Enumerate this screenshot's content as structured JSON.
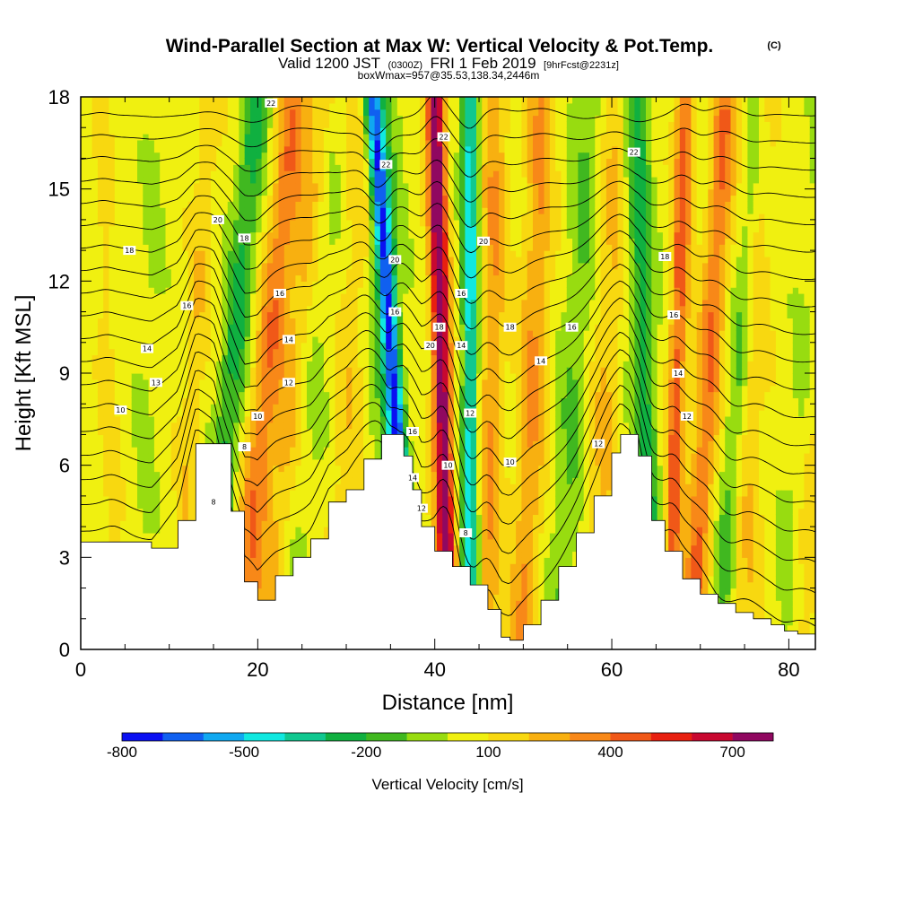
{
  "title": {
    "main": "Wind-Parallel Section at Max W: Vertical Velocity & Pot.Temp.",
    "copyright": "(C)",
    "line2_a": "Valid 1200 JST",
    "line2_b": "(0300Z)",
    "line2_c": "FRI 1 Feb 2019",
    "line2_d": "[9hrFcst@2231z]",
    "line3": "boxWmax=957@35.53,138.34,2446m"
  },
  "chart_data": {
    "type": "heatmap",
    "xlabel": "Distance [nm]",
    "ylabel": "Height [Kft MSL]",
    "xlim": [
      0,
      83
    ],
    "ylim": [
      0,
      18
    ],
    "xticks": [
      0,
      20,
      40,
      60,
      80
    ],
    "yticks": [
      0,
      3,
      6,
      9,
      12,
      15,
      18
    ],
    "x_minor_step": 5,
    "y_minor_step": 1,
    "colorbar": {
      "label": "Vertical Velocity [cm/s]",
      "levels": [
        -800,
        -700,
        -600,
        -500,
        -400,
        -300,
        -200,
        -100,
        0,
        100,
        200,
        300,
        400,
        500,
        600,
        700,
        800
      ],
      "colors": [
        "#0a10f2",
        "#1060f0",
        "#10a8f0",
        "#10e8e0",
        "#10c890",
        "#10b040",
        "#40b820",
        "#98dc10",
        "#f0f010",
        "#f8d810",
        "#f8b010",
        "#f88818",
        "#f05818",
        "#e82010",
        "#c80830",
        "#900860"
      ],
      "ticklabels": [
        {
          "value": -800,
          "text": "-800"
        },
        {
          "value": -500,
          "text": "-500"
        },
        {
          "value": -200,
          "text": "-200"
        },
        {
          "value": 100,
          "text": "100"
        },
        {
          "value": 400,
          "text": "400"
        },
        {
          "value": 700,
          "text": "700"
        }
      ]
    },
    "terrain_kft": {
      "x": [
        0,
        5,
        8,
        11,
        13,
        15,
        17,
        18.5,
        20,
        22,
        24,
        26,
        28,
        30,
        32,
        34,
        35.5,
        36.5,
        37.5,
        38.5,
        40,
        42,
        44,
        46,
        47.5,
        48.5,
        50,
        52,
        54,
        56,
        58,
        60,
        61,
        62,
        63,
        64.5,
        66,
        68,
        70,
        72,
        74,
        76,
        78,
        79.5,
        81,
        83
      ],
      "y": [
        3.5,
        3.5,
        3.3,
        4.2,
        6.7,
        6.7,
        4.5,
        2.2,
        1.6,
        2.4,
        3.0,
        3.6,
        4.8,
        5.2,
        6.2,
        7.0,
        7.0,
        6.3,
        5.2,
        4.0,
        3.2,
        2.7,
        2.1,
        1.3,
        0.4,
        0.3,
        0.8,
        1.6,
        2.7,
        3.8,
        5.0,
        6.4,
        7.0,
        7.0,
        6.3,
        4.2,
        3.2,
        2.3,
        1.8,
        1.5,
        1.2,
        1.0,
        0.8,
        0.6,
        0.5,
        0.3
      ]
    },
    "w_bands": [
      {
        "xb": 4,
        "w": 0.9,
        "s": -0.1,
        "v": 100
      },
      {
        "xb": 6.5,
        "w": 1.3,
        "s": 0.12,
        "v": -60
      },
      {
        "xb": 11,
        "w": 1.2,
        "s": 0.2,
        "v": 130
      },
      {
        "xb": 14.5,
        "w": 1.6,
        "s": 0.3,
        "v": -280
      },
      {
        "xb": 18,
        "w": 1.8,
        "s": 0.35,
        "v": 330
      },
      {
        "xb": 21,
        "w": 1.4,
        "s": 0.35,
        "v": 160
      },
      {
        "xb": 24,
        "w": 2.2,
        "s": 0.3,
        "v": -60
      },
      {
        "xb": 29,
        "w": 1.8,
        "s": 0.15,
        "v": 120
      },
      {
        "xb": 34,
        "w": 1.8,
        "s": 0.05,
        "v": -120
      },
      {
        "xb": 37.5,
        "w": 1.0,
        "s": -0.25,
        "v": -700
      },
      {
        "xb": 41.5,
        "w": 1.0,
        "s": -0.08,
        "v": 780
      },
      {
        "xb": 44,
        "w": 0.9,
        "s": 0.0,
        "v": -520
      },
      {
        "xb": 46,
        "w": 1.4,
        "s": 0.05,
        "v": 240
      },
      {
        "xb": 50,
        "w": 1.6,
        "s": 0.12,
        "v": 250
      },
      {
        "xb": 54,
        "w": 1.8,
        "s": 0.2,
        "v": -150
      },
      {
        "xb": 58,
        "w": 1.6,
        "s": 0.15,
        "v": 160
      },
      {
        "xb": 64.5,
        "w": 1.4,
        "s": -0.1,
        "v": -300
      },
      {
        "xb": 66.5,
        "w": 1.0,
        "s": 0.1,
        "v": 400
      },
      {
        "xb": 69,
        "w": 1.4,
        "s": 0.22,
        "v": 340
      },
      {
        "xb": 72,
        "w": 1.2,
        "s": 0.25,
        "v": -180
      },
      {
        "xb": 75,
        "w": 1.5,
        "s": 0.1,
        "v": 140
      },
      {
        "xb": 79,
        "w": 1.5,
        "s": 0.3,
        "v": -70
      },
      {
        "xb": 81.5,
        "w": 1.2,
        "s": 0.2,
        "v": 110
      }
    ],
    "theta_contours": {
      "levels": [
        8,
        9,
        10,
        11,
        12,
        13,
        14,
        15,
        16,
        17,
        18,
        19,
        20,
        21,
        22,
        23,
        24,
        25,
        26
      ],
      "labels": [
        {
          "x": 4.5,
          "y": 7.8,
          "text": "10"
        },
        {
          "x": 8.5,
          "y": 8.7,
          "text": "13"
        },
        {
          "x": 7.5,
          "y": 9.8,
          "text": "14"
        },
        {
          "x": 5.5,
          "y": 13.0,
          "text": "18"
        },
        {
          "x": 12,
          "y": 11.2,
          "text": "16"
        },
        {
          "x": 15.5,
          "y": 14.0,
          "text": "20"
        },
        {
          "x": 18.5,
          "y": 13.4,
          "text": "18"
        },
        {
          "x": 21.5,
          "y": 17.8,
          "text": "22"
        },
        {
          "x": 22.5,
          "y": 11.6,
          "text": "16"
        },
        {
          "x": 23.5,
          "y": 10.1,
          "text": "14"
        },
        {
          "x": 23.5,
          "y": 8.7,
          "text": "12"
        },
        {
          "x": 20,
          "y": 7.6,
          "text": "10"
        },
        {
          "x": 18.5,
          "y": 6.6,
          "text": "8"
        },
        {
          "x": 15,
          "y": 4.8,
          "text": "8"
        },
        {
          "x": 34.5,
          "y": 15.8,
          "text": "22"
        },
        {
          "x": 35.5,
          "y": 12.7,
          "text": "20"
        },
        {
          "x": 35.5,
          "y": 11.0,
          "text": "16"
        },
        {
          "x": 37.5,
          "y": 7.1,
          "text": "16"
        },
        {
          "x": 37.5,
          "y": 5.6,
          "text": "14"
        },
        {
          "x": 38.5,
          "y": 4.6,
          "text": "12"
        },
        {
          "x": 41,
          "y": 16.7,
          "text": "22"
        },
        {
          "x": 39.5,
          "y": 9.9,
          "text": "20"
        },
        {
          "x": 40.5,
          "y": 10.5,
          "text": "18"
        },
        {
          "x": 41.5,
          "y": 6.0,
          "text": "10"
        },
        {
          "x": 45.5,
          "y": 13.3,
          "text": "20"
        },
        {
          "x": 43,
          "y": 11.6,
          "text": "16"
        },
        {
          "x": 43,
          "y": 9.9,
          "text": "14"
        },
        {
          "x": 44,
          "y": 7.7,
          "text": "12"
        },
        {
          "x": 43.5,
          "y": 3.8,
          "text": "8"
        },
        {
          "x": 48.5,
          "y": 10.5,
          "text": "18"
        },
        {
          "x": 48.5,
          "y": 6.1,
          "text": "10"
        },
        {
          "x": 52,
          "y": 9.4,
          "text": "14"
        },
        {
          "x": 55.5,
          "y": 10.5,
          "text": "16"
        },
        {
          "x": 58.5,
          "y": 6.7,
          "text": "12"
        },
        {
          "x": 62.5,
          "y": 16.2,
          "text": "22"
        },
        {
          "x": 66,
          "y": 12.8,
          "text": "18"
        },
        {
          "x": 67,
          "y": 10.9,
          "text": "16"
        },
        {
          "x": 67.5,
          "y": 9.0,
          "text": "14"
        },
        {
          "x": 68.5,
          "y": 7.6,
          "text": "12"
        }
      ]
    }
  }
}
